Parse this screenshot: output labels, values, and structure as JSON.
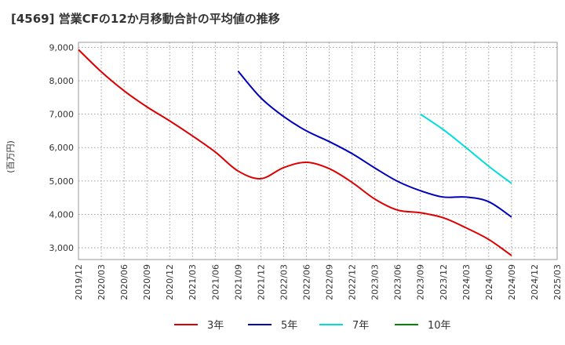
{
  "chart_data": {
    "type": "line",
    "title": "[4569]  営業CFの12か月移動合計の平均値の推移",
    "ylabel": "(百万円)",
    "xlabel": "",
    "ylim": [
      2650,
      9150
    ],
    "yticks": [
      3000,
      4000,
      5000,
      6000,
      7000,
      8000,
      9000
    ],
    "ytick_labels": [
      "3,000",
      "4,000",
      "5,000",
      "6,000",
      "7,000",
      "8,000",
      "9,000"
    ],
    "xtick_labels": [
      "2019/12",
      "2020/03",
      "2020/06",
      "2020/09",
      "2020/12",
      "2021/03",
      "2021/06",
      "2021/09",
      "2021/12",
      "2022/03",
      "2022/06",
      "2022/09",
      "2022/12",
      "2023/03",
      "2023/06",
      "2023/09",
      "2023/12",
      "2024/03",
      "2024/06",
      "2024/09",
      "2024/12",
      "2025/03"
    ],
    "grid": true,
    "legend_position": "bottom",
    "series": [
      {
        "name": "3年",
        "color": "#dd0000",
        "values": [
          8930,
          8270,
          7700,
          7220,
          6800,
          6350,
          5870,
          5300,
          5070,
          5400,
          5560,
          5370,
          4960,
          4460,
          4130,
          4050,
          3900,
          3600,
          3250,
          2770,
          null,
          null
        ]
      },
      {
        "name": "5年",
        "color": "#0000bb",
        "values": [
          null,
          null,
          null,
          null,
          null,
          null,
          null,
          8290,
          7490,
          6930,
          6500,
          6180,
          5820,
          5390,
          4990,
          4710,
          4520,
          4520,
          4380,
          3920,
          null,
          null
        ]
      },
      {
        "name": "7年",
        "color": "#00dddd",
        "values": [
          null,
          null,
          null,
          null,
          null,
          null,
          null,
          null,
          null,
          null,
          null,
          null,
          null,
          null,
          null,
          7000,
          6540,
          6000,
          5440,
          4930,
          null,
          null
        ]
      },
      {
        "name": "10年",
        "color": "#008800",
        "values": [
          null,
          null,
          null,
          null,
          null,
          null,
          null,
          null,
          null,
          null,
          null,
          null,
          null,
          null,
          null,
          null,
          null,
          null,
          null,
          null,
          null,
          null
        ]
      }
    ]
  }
}
